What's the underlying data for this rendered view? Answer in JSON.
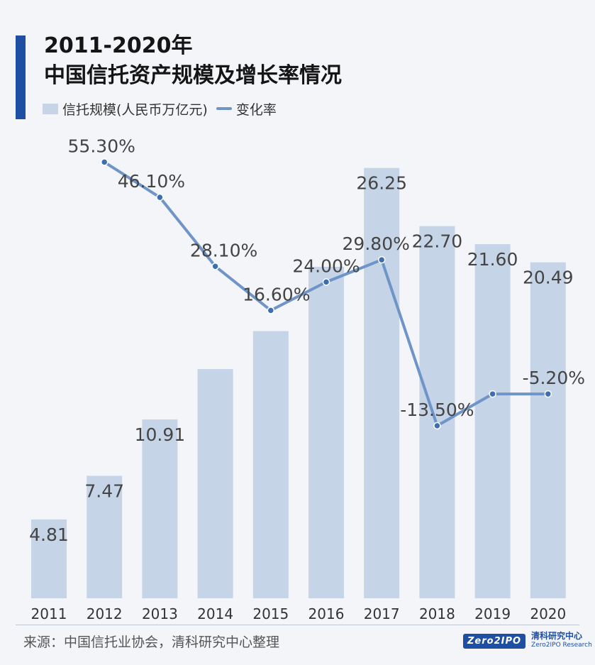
{
  "title_line1": "2011-2020年",
  "title_line2": "中国信托资产规模及增长率情况",
  "legend": {
    "bar_label": "信托规模(人民币万亿元)",
    "line_label": "变化率"
  },
  "source": "来源：中国信托业协会，清科研究中心整理",
  "logo": {
    "badge": "Zero2IPO",
    "cn": "清科研究中心",
    "en": "Zero2IPO Research"
  },
  "colors": {
    "bar": "#c6d4e8",
    "line": "#6f95c8",
    "marker": "#3d6fb0",
    "accent": "#1f4fa3"
  },
  "chart_data": {
    "type": "bar",
    "categories": [
      "2011",
      "2012",
      "2013",
      "2014",
      "2015",
      "2016",
      "2017",
      "2018",
      "2019",
      "2020"
    ],
    "series": [
      {
        "name": "信托规模(人民币万亿元)",
        "type": "bar",
        "values": [
          4.81,
          7.47,
          10.91,
          13.98,
          16.3,
          20.22,
          26.25,
          22.7,
          21.6,
          20.49
        ],
        "labels": [
          "4.81",
          "7.47",
          "10.91",
          "",
          "",
          "",
          "26.25",
          "22.70",
          "21.60",
          "20.49"
        ]
      },
      {
        "name": "变化率",
        "type": "line",
        "values": [
          null,
          55.3,
          46.1,
          28.1,
          16.6,
          24.0,
          29.8,
          -13.5,
          -5.2,
          -5.2
        ],
        "labels": [
          "",
          "55.30%",
          "46.10%",
          "28.10%",
          "16.60%",
          "24.00%",
          "29.80%",
          "-13.50%",
          "",
          "-5.20%"
        ]
      }
    ]
  }
}
